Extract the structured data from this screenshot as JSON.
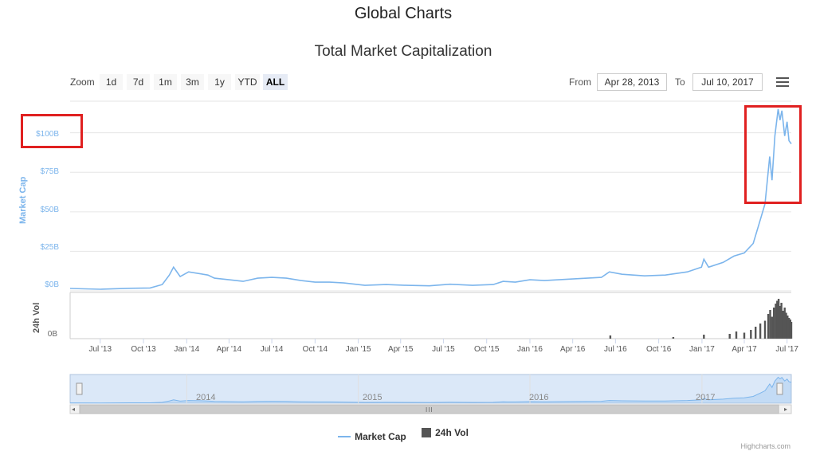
{
  "page_title": "Global Charts",
  "chart_title": "Total Market Capitalization",
  "range_selector": {
    "zoom_label": "Zoom",
    "buttons": [
      "1d",
      "7d",
      "1m",
      "3m",
      "1y",
      "YTD",
      "ALL"
    ],
    "selected": "ALL",
    "from_label": "From",
    "from_value": "Apr 28, 2013",
    "to_label": "To",
    "to_value": "Jul 10, 2017"
  },
  "icons": {
    "menu": "hamburger-menu-icon",
    "scroll_left": "arrow-left-icon",
    "scroll_right": "arrow-right-icon"
  },
  "colors": {
    "market_cap": "#7cb5ec",
    "volume": "#555555",
    "highlight": "#e02020",
    "navigator_fill": "#dbe8f8"
  },
  "chart_data": {
    "type": "line",
    "x_axis": {
      "type": "datetime",
      "range": [
        "2013-04-28",
        "2017-07-10"
      ],
      "tick_labels": [
        "Jul '13",
        "Oct '13",
        "Jan '14",
        "Apr '14",
        "Jul '14",
        "Oct '14",
        "Jan '15",
        "Apr '15",
        "Jul '15",
        "Oct '15",
        "Jan '16",
        "Apr '16",
        "Jul '16",
        "Oct '16",
        "Jan '17",
        "Apr '17",
        "Jul '17"
      ]
    },
    "y_axis_market_cap": {
      "title": "Market Cap",
      "ylim": [
        0,
        120
      ],
      "unit": "billion USD",
      "tick_labels": [
        "$0B",
        "$25B",
        "$50B",
        "$75B",
        "$100B"
      ]
    },
    "y_axis_volume": {
      "title": "24h Vol",
      "tick_labels": [
        "0B"
      ]
    },
    "series": [
      {
        "name": "Market Cap",
        "type": "line",
        "points": [
          [
            "2013-04-28",
            1.5
          ],
          [
            "2013-07-01",
            1.0
          ],
          [
            "2013-09-01",
            1.6
          ],
          [
            "2013-10-15",
            1.8
          ],
          [
            "2013-11-10",
            4
          ],
          [
            "2013-11-25",
            10
          ],
          [
            "2013-12-04",
            15
          ],
          [
            "2013-12-18",
            9
          ],
          [
            "2014-01-05",
            12
          ],
          [
            "2014-02-15",
            10
          ],
          [
            "2014-03-01",
            8
          ],
          [
            "2014-04-01",
            7
          ],
          [
            "2014-05-01",
            6
          ],
          [
            "2014-06-01",
            8
          ],
          [
            "2014-07-01",
            8.5
          ],
          [
            "2014-08-01",
            8
          ],
          [
            "2014-09-01",
            6.5
          ],
          [
            "2014-10-01",
            5.5
          ],
          [
            "2014-11-01",
            5.5
          ],
          [
            "2014-12-01",
            5
          ],
          [
            "2015-01-15",
            3.5
          ],
          [
            "2015-03-01",
            4
          ],
          [
            "2015-04-15",
            3.5
          ],
          [
            "2015-06-01",
            3.2
          ],
          [
            "2015-07-15",
            4.2
          ],
          [
            "2015-09-01",
            3.5
          ],
          [
            "2015-10-15",
            4
          ],
          [
            "2015-11-05",
            6
          ],
          [
            "2015-12-01",
            5.5
          ],
          [
            "2016-01-01",
            7
          ],
          [
            "2016-02-01",
            6.5
          ],
          [
            "2016-04-01",
            7.5
          ],
          [
            "2016-06-01",
            8.5
          ],
          [
            "2016-06-18",
            12
          ],
          [
            "2016-07-15",
            10.5
          ],
          [
            "2016-09-01",
            9.5
          ],
          [
            "2016-10-15",
            10
          ],
          [
            "2016-12-01",
            12
          ],
          [
            "2016-12-31",
            15
          ],
          [
            "2017-01-05",
            20
          ],
          [
            "2017-01-15",
            15
          ],
          [
            "2017-02-15",
            18
          ],
          [
            "2017-03-10",
            22
          ],
          [
            "2017-04-01",
            24
          ],
          [
            "2017-04-20",
            30
          ],
          [
            "2017-05-05",
            45
          ],
          [
            "2017-05-15",
            55
          ],
          [
            "2017-05-25",
            85
          ],
          [
            "2017-05-30",
            70
          ],
          [
            "2017-06-05",
            98
          ],
          [
            "2017-06-12",
            115
          ],
          [
            "2017-06-16",
            108
          ],
          [
            "2017-06-20",
            114
          ],
          [
            "2017-06-26",
            98
          ],
          [
            "2017-07-01",
            107
          ],
          [
            "2017-07-05",
            95
          ],
          [
            "2017-07-10",
            93
          ]
        ]
      },
      {
        "name": "24h Vol",
        "type": "column",
        "points": [
          [
            "2016-06-20",
            0.08
          ],
          [
            "2016-11-01",
            0.04
          ],
          [
            "2017-01-05",
            0.1
          ],
          [
            "2017-03-01",
            0.12
          ],
          [
            "2017-03-15",
            0.18
          ],
          [
            "2017-04-01",
            0.15
          ],
          [
            "2017-04-15",
            0.22
          ],
          [
            "2017-04-25",
            0.3
          ],
          [
            "2017-05-05",
            0.38
          ],
          [
            "2017-05-15",
            0.45
          ],
          [
            "2017-05-22",
            0.62
          ],
          [
            "2017-05-26",
            0.72
          ],
          [
            "2017-05-30",
            0.55
          ],
          [
            "2017-06-03",
            0.78
          ],
          [
            "2017-06-07",
            0.88
          ],
          [
            "2017-06-10",
            0.95
          ],
          [
            "2017-06-13",
            1.0
          ],
          [
            "2017-06-16",
            0.82
          ],
          [
            "2017-06-19",
            0.9
          ],
          [
            "2017-06-22",
            0.7
          ],
          [
            "2017-06-26",
            0.78
          ],
          [
            "2017-06-29",
            0.65
          ],
          [
            "2017-07-02",
            0.58
          ],
          [
            "2017-07-05",
            0.52
          ],
          [
            "2017-07-08",
            0.48
          ],
          [
            "2017-07-10",
            0.42
          ]
        ]
      }
    ],
    "navigator": {
      "year_labels": [
        "2014",
        "2015",
        "2016",
        "2017"
      ],
      "scrollbar_grip": "III"
    },
    "legend": {
      "placement": "bottom-center",
      "items": [
        "Market Cap",
        "24h Vol"
      ]
    },
    "annotations": {
      "highlight_boxes": [
        "around $100B y-axis label",
        "around mid-2017 peak"
      ]
    },
    "grid": true
  },
  "credits": "Highcharts.com"
}
